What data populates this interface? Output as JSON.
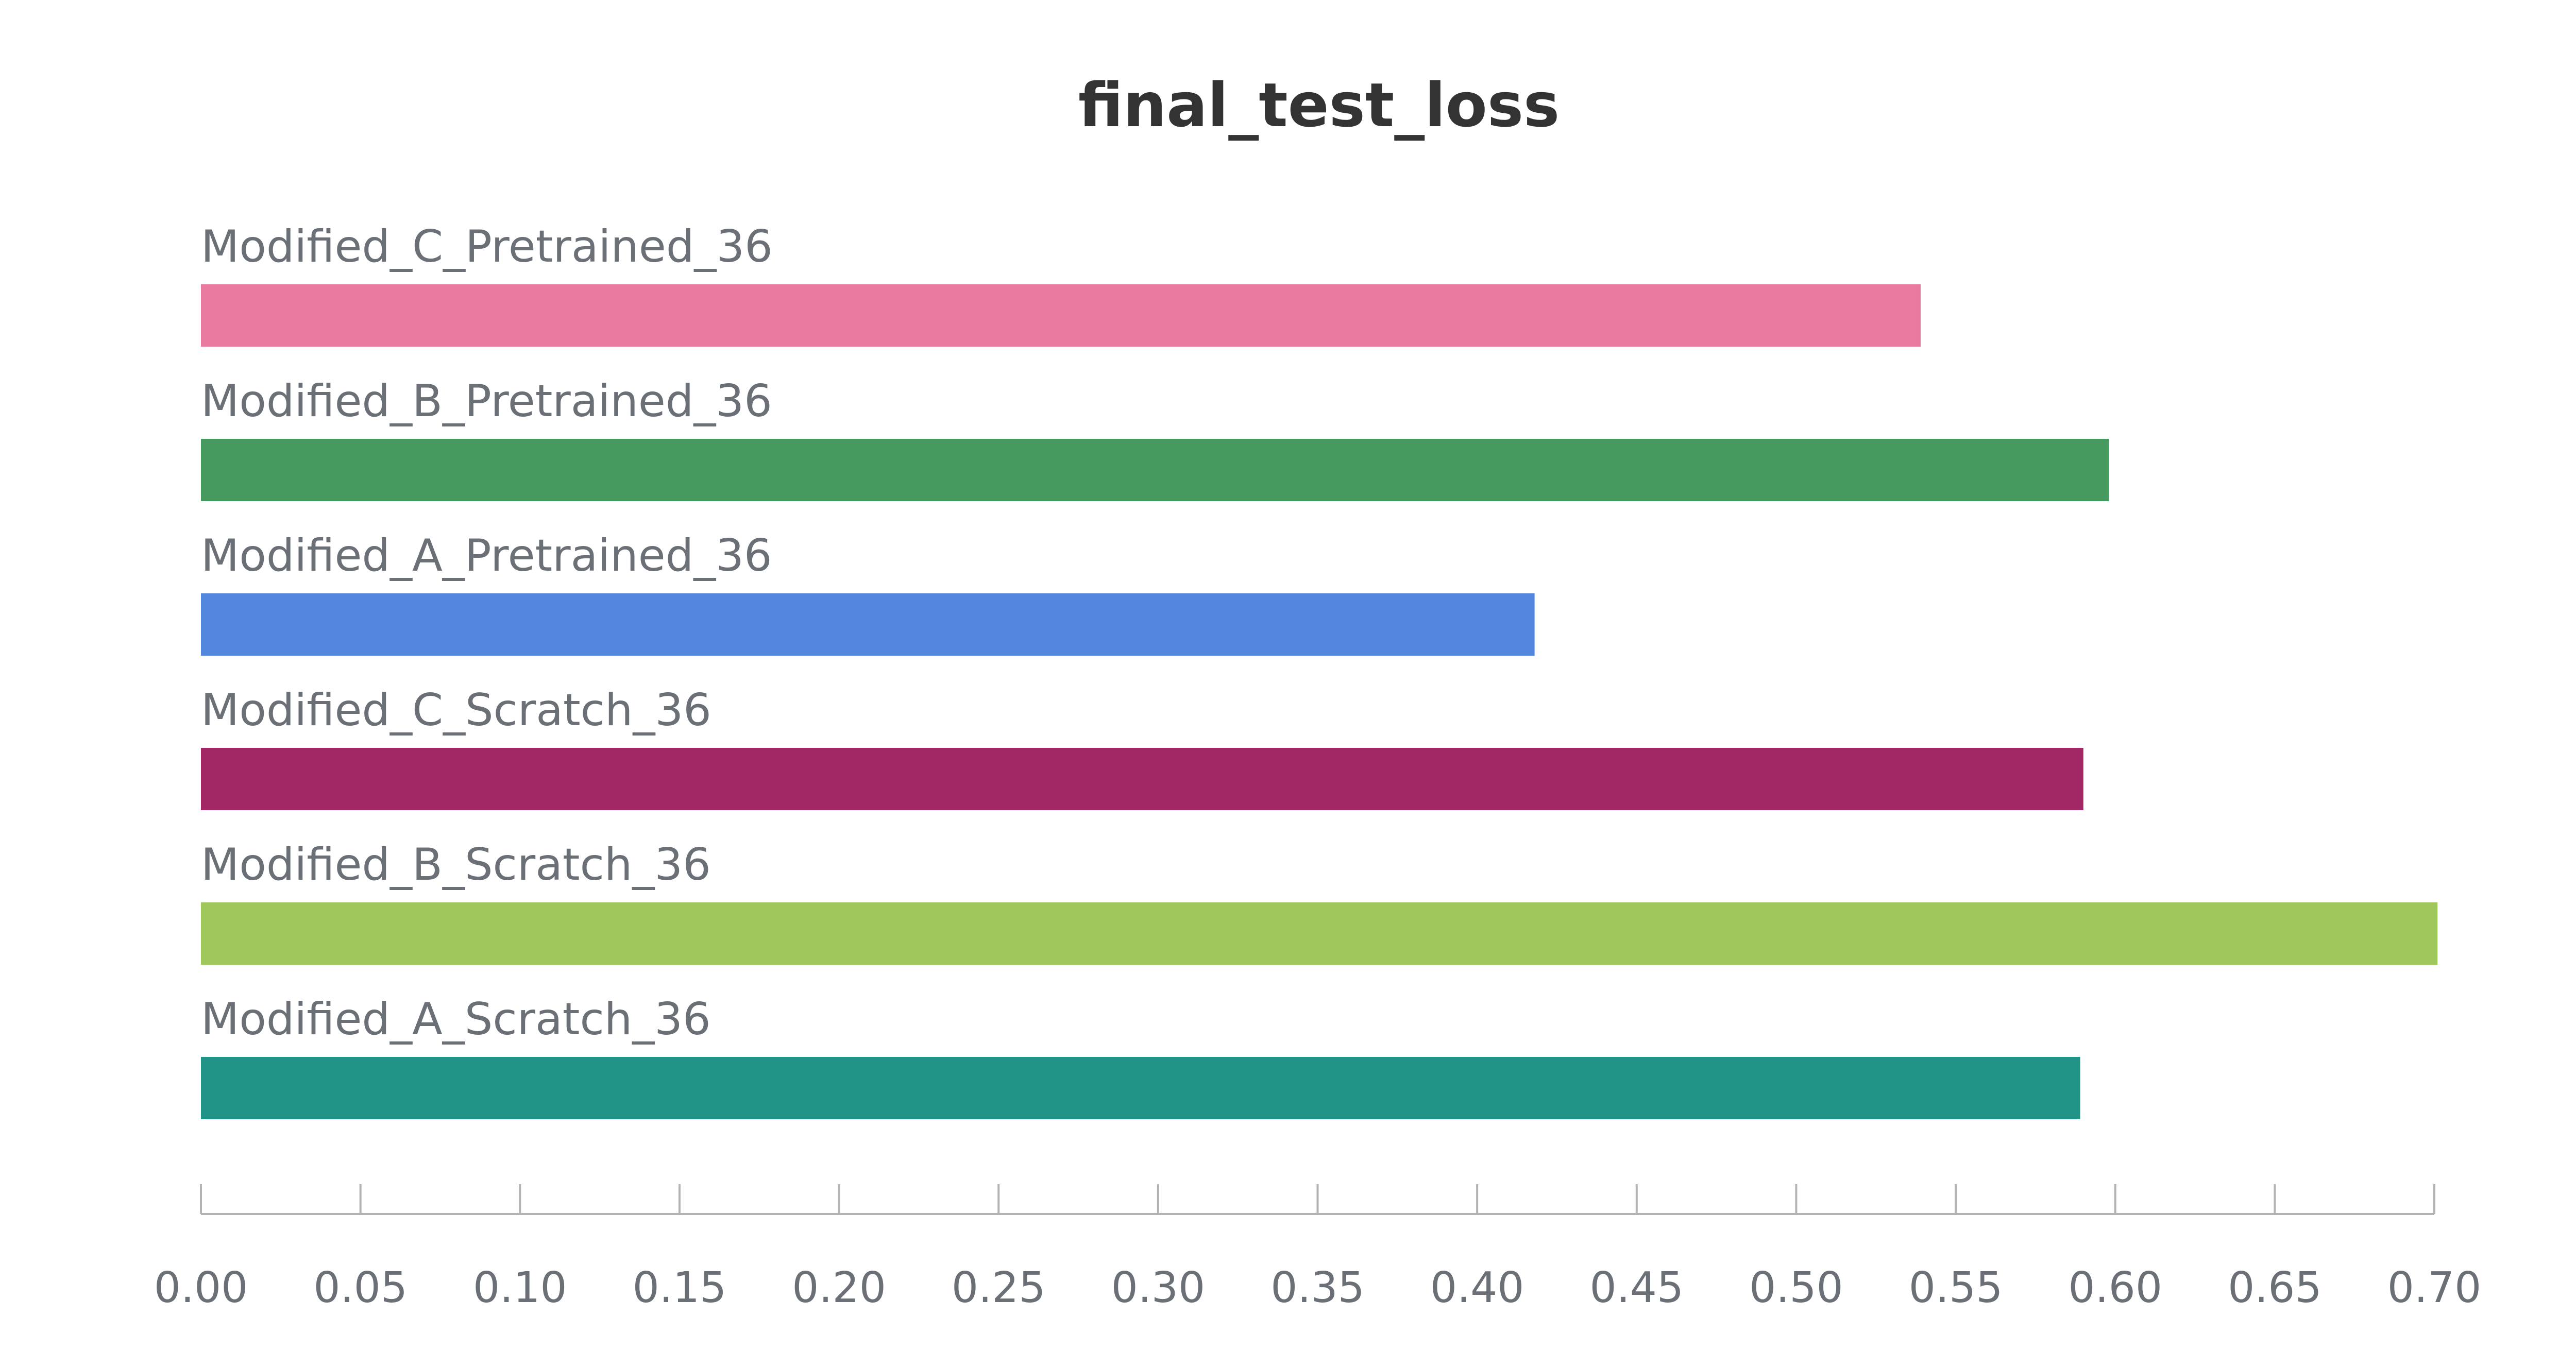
{
  "chart_data": {
    "type": "bar",
    "orientation": "horizontal",
    "title": "final_test_loss",
    "xlabel": "",
    "ylabel": "",
    "xlim": [
      0,
      0.7
    ],
    "grid": false,
    "x_ticks": [
      "0.00",
      "0.05",
      "0.10",
      "0.15",
      "0.20",
      "0.25",
      "0.30",
      "0.35",
      "0.40",
      "0.45",
      "0.50",
      "0.55",
      "0.60",
      "0.65",
      "0.70"
    ],
    "categories": [
      "Modified_C_Pretrained_36",
      "Modified_B_Pretrained_36",
      "Modified_A_Pretrained_36",
      "Modified_C_Scratch_36",
      "Modified_B_Scratch_36",
      "Modified_A_Scratch_36"
    ],
    "values": [
      0.539,
      0.598,
      0.418,
      0.59,
      0.701,
      0.589
    ],
    "colors": [
      "#e87a9f",
      "#479a5f",
      "#5387dd",
      "#a12864",
      "#a0c75c",
      "#229487"
    ]
  },
  "axis_color": "#b3b3b3"
}
